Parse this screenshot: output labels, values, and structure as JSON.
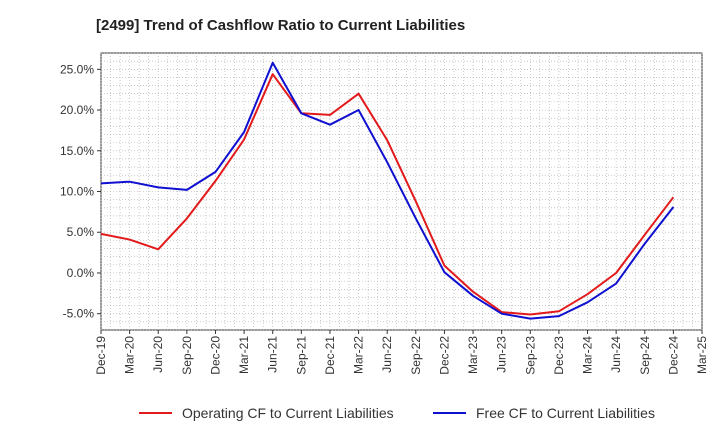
{
  "chart_data": {
    "type": "line",
    "title": "[2499]  Trend of Cashflow Ratio to Current Liabilities",
    "xlabel": "",
    "ylabel": "",
    "x": [
      "Dec-19",
      "Mar-20",
      "Jun-20",
      "Sep-20",
      "Dec-20",
      "Mar-21",
      "Jun-21",
      "Sep-21",
      "Dec-21",
      "Mar-22",
      "Jun-22",
      "Sep-22",
      "Dec-22",
      "Mar-23",
      "Jun-23",
      "Sep-23",
      "Dec-23",
      "Mar-24",
      "Jun-24",
      "Sep-24",
      "Dec-24",
      "Mar-25"
    ],
    "y_ticks": [
      "-5.0%",
      "0.0%",
      "5.0%",
      "10.0%",
      "15.0%",
      "20.0%",
      "25.0%"
    ],
    "ylim": [
      -7.0,
      27.0
    ],
    "grid": true,
    "legend_position": "bottom",
    "series": [
      {
        "name": "Operating CF to Current Liabilities",
        "color": "#e31a1c",
        "values": [
          4.8,
          4.1,
          2.9,
          6.7,
          11.3,
          16.4,
          24.4,
          19.6,
          19.4,
          22.0,
          16.3,
          8.8,
          0.9,
          -2.3,
          -4.8,
          -5.1,
          -4.7,
          -2.6,
          0.0,
          4.7,
          9.3,
          null
        ]
      },
      {
        "name": "Free CF to Current Liabilities",
        "color": "#1010d0",
        "values": [
          11.0,
          11.2,
          10.5,
          10.2,
          12.4,
          17.3,
          25.8,
          19.6,
          18.2,
          20.0,
          13.6,
          6.7,
          0.1,
          -2.8,
          -5.0,
          -5.6,
          -5.3,
          -3.6,
          -1.3,
          3.6,
          8.1,
          null
        ]
      }
    ]
  }
}
